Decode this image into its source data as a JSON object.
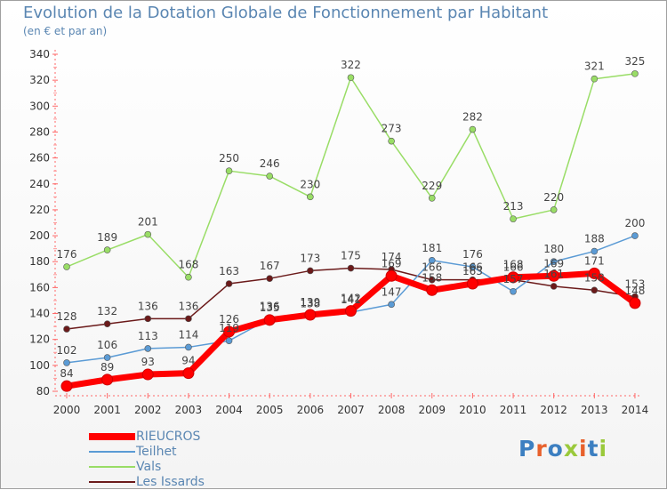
{
  "title": "Evolution de la Dotation Globale de Fonctionnement par Habitant",
  "subtitle": "(en € et par an)",
  "logo_text": "Proxiti",
  "chart_data": {
    "type": "line",
    "title": "Evolution de la Dotation Globale de Fonctionnement par Habitant",
    "subtitle": "(en € et par an)",
    "x": [
      "2000",
      "2001",
      "2002",
      "2003",
      "2004",
      "2005",
      "2006",
      "2007",
      "2008",
      "2009",
      "2010",
      "2011",
      "2012",
      "2013",
      "2014"
    ],
    "ylim": [
      80,
      340
    ],
    "yticks": [
      80,
      100,
      120,
      140,
      160,
      180,
      200,
      220,
      240,
      260,
      280,
      300,
      320,
      340
    ],
    "grid": false,
    "legend_position": "bottom-left",
    "series": [
      {
        "name": "RIEUCROS",
        "color": "#ff0000",
        "values": [
          84,
          89,
          93,
          94,
          126,
          135,
          139,
          142,
          169,
          158,
          163,
          168,
          169,
          171,
          148
        ]
      },
      {
        "name": "Teilhet",
        "color": "#5b9bd5",
        "values": [
          102,
          106,
          113,
          114,
          119,
          136,
          138,
          141,
          147,
          181,
          176,
          157,
          180,
          188,
          200
        ]
      },
      {
        "name": "Vals",
        "color": "#99dd66",
        "values": [
          176,
          189,
          201,
          168,
          250,
          246,
          230,
          322,
          273,
          229,
          282,
          213,
          220,
          321,
          325
        ]
      },
      {
        "name": "Les Issards",
        "color": "#6b1a1a",
        "values": [
          128,
          132,
          136,
          136,
          163,
          167,
          173,
          175,
          174,
          166,
          166,
          166,
          161,
          158,
          153
        ]
      }
    ]
  }
}
